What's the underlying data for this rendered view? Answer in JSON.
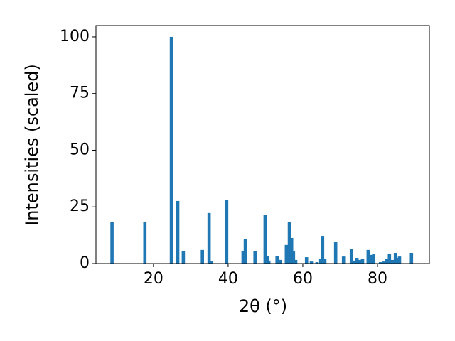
{
  "chart_data": {
    "type": "bar",
    "x_label": "2θ (°)",
    "y_label": "Intensities (scaled)",
    "x": [
      8.9,
      17.7,
      24.8,
      26.5,
      28.0,
      33.1,
      34.9,
      35.4,
      39.6,
      44.0,
      44.6,
      47.2,
      49.9,
      50.5,
      50.9,
      53.1,
      53.9,
      55.6,
      56.4,
      57.0,
      57.5,
      58.1,
      61.0,
      62.3,
      63.8,
      64.8,
      65.3,
      65.9,
      68.8,
      70.9,
      73.0,
      73.7,
      74.5,
      75.2,
      76.0,
      77.5,
      78.3,
      79.0,
      80.8,
      81.7,
      82.5,
      83.2,
      84.0,
      84.8,
      85.3,
      85.9,
      89.1
    ],
    "values": [
      18.5,
      18.2,
      100,
      27.6,
      5.6,
      6.0,
      22.3,
      1.0,
      27.9,
      5.6,
      10.7,
      5.6,
      21.6,
      3.4,
      1.3,
      3.4,
      1.6,
      8.2,
      18.2,
      11.3,
      5.3,
      1.6,
      2.8,
      0.9,
      0.6,
      2.2,
      12.2,
      2.2,
      9.7,
      3.1,
      6.3,
      1.3,
      2.5,
      1.6,
      1.9,
      6.0,
      3.8,
      4.1,
      0.6,
      0.9,
      1.9,
      4.1,
      1.6,
      4.7,
      2.5,
      3.1,
      4.7
    ],
    "color": "#1f77b4",
    "xlim": [
      4.6,
      93.9
    ],
    "ylim": [
      0,
      105
    ],
    "xticks": [
      20,
      40,
      60,
      80
    ],
    "yticks": [
      0,
      25,
      50,
      75,
      100
    ],
    "grid": false
  }
}
